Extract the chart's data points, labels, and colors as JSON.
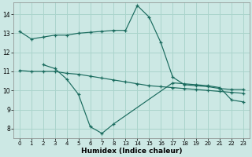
{
  "xlabel": "Humidex (Indice chaleur)",
  "bg_color": "#cce8e4",
  "grid_color": "#aad4cc",
  "line_color": "#1a6b5e",
  "xtick_labels": [
    "0",
    "1",
    "2",
    "3",
    "4",
    "5",
    "6",
    "7",
    "8",
    "13",
    "14",
    "15",
    "16",
    "17",
    "18",
    "19",
    "20",
    "21",
    "22",
    "23"
  ],
  "yticks": [
    8,
    9,
    10,
    11,
    12,
    13,
    14
  ],
  "ylim": [
    7.5,
    14.6
  ],
  "series": [
    {
      "xi": [
        0,
        1,
        2,
        3,
        4,
        5,
        6,
        7,
        8,
        9,
        10,
        11,
        12,
        13,
        14,
        15,
        16,
        17,
        18,
        19
      ],
      "y": [
        13.1,
        12.7,
        12.8,
        12.9,
        12.9,
        13.0,
        13.05,
        13.1,
        13.15,
        13.15,
        14.45,
        13.85,
        12.5,
        10.7,
        10.3,
        10.25,
        10.2,
        10.1,
        10.05,
        10.05
      ]
    },
    {
      "xi": [
        2,
        3,
        4,
        5,
        6,
        7,
        8,
        13,
        14,
        15,
        16,
        17,
        18,
        19
      ],
      "y": [
        11.35,
        11.15,
        10.6,
        9.8,
        8.1,
        7.75,
        8.25,
        10.4,
        10.35,
        10.3,
        10.25,
        10.15,
        9.5,
        9.4
      ]
    },
    {
      "xi": [
        0,
        1,
        2,
        3,
        4,
        5,
        6,
        7,
        8,
        9,
        10,
        11,
        12,
        13,
        14,
        15,
        16,
        17,
        18,
        19
      ],
      "y": [
        11.05,
        11.0,
        11.0,
        11.0,
        10.9,
        10.85,
        10.75,
        10.65,
        10.55,
        10.45,
        10.35,
        10.25,
        10.2,
        10.15,
        10.1,
        10.05,
        10.0,
        9.95,
        9.9,
        9.85
      ]
    }
  ]
}
